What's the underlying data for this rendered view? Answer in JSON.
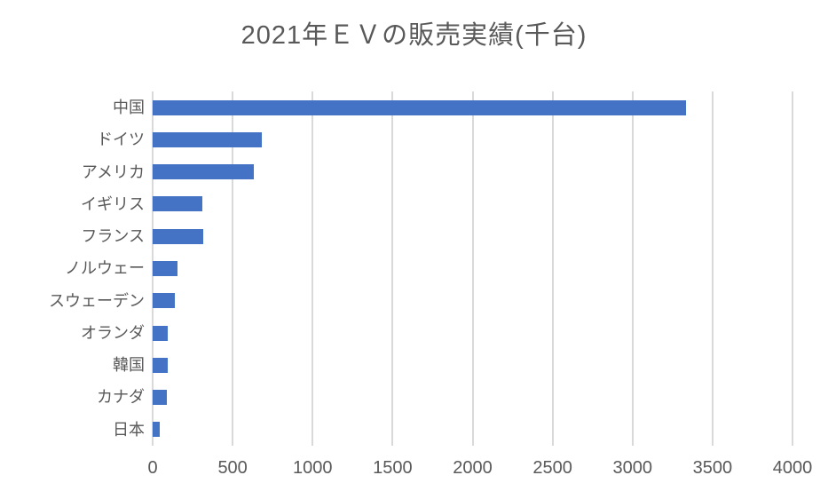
{
  "chart_data": {
    "type": "bar",
    "orientation": "horizontal",
    "title": "2021年ＥＶの販売実績(千台)",
    "categories": [
      "中国",
      "ドイツ",
      "アメリカ",
      "イギリス",
      "フランス",
      "ノルウェー",
      "スウェーデン",
      "オランダ",
      "韓国",
      "カナダ",
      "日本"
    ],
    "values": [
      3334,
      685,
      630,
      310,
      315,
      155,
      140,
      97,
      96,
      90,
      45
    ],
    "xlabel": "",
    "ylabel": "",
    "xlim": [
      0,
      4000
    ],
    "xticks": [
      0,
      500,
      1000,
      1500,
      2000,
      2500,
      3000,
      3500,
      4000
    ],
    "grid": true,
    "legend": false
  },
  "colors": {
    "bar": "#4472C4",
    "gridline": "#D9D9D9",
    "text": "#595959",
    "background": "#FFFFFF"
  }
}
